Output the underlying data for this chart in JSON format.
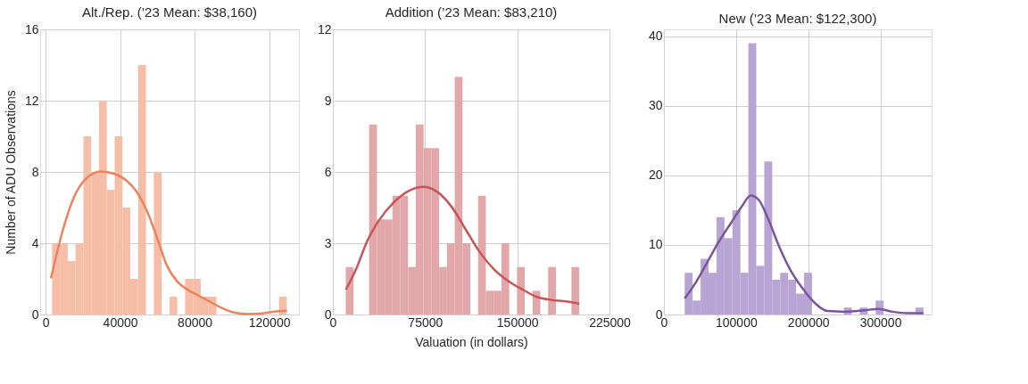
{
  "chart_data": [
    {
      "type": "histogram",
      "title": "Alt./Rep. (’23 Mean: $38,160)",
      "ylabel": "Number of ADU Observations",
      "bins": [
        3500,
        7700,
        11900,
        16100,
        20300,
        24500,
        28700,
        32900,
        37100,
        41300,
        45500,
        49700,
        53900,
        58100,
        62300,
        66500,
        70700,
        74900,
        79100,
        83300,
        87500,
        91700,
        95900,
        100100,
        104300,
        108500,
        112700,
        116900,
        121100,
        125300,
        129500
      ],
      "series": [
        {
          "color": "#f6bea6",
          "values": [
            4,
            4,
            3,
            4,
            10,
            8,
            12,
            7,
            10,
            6,
            2,
            14,
            0,
            8,
            0,
            1,
            0,
            2,
            2,
            1,
            1,
            0,
            0,
            0,
            0,
            0,
            0,
            0,
            0,
            1
          ]
        },
        {
          "type": "line",
          "color": "#ec8360",
          "x": [
            2900,
            9450,
            15270,
            21090,
            29820,
            37090,
            42900,
            48730,
            54545,
            60360,
            64730,
            70550,
            76360,
            82180,
            88000,
            93820,
            101090,
            108360,
            115630,
            122900,
            129450
          ],
          "values": [
            2.03,
            4.8,
            6.59,
            7.56,
            8.02,
            7.89,
            7.56,
            6.91,
            5.77,
            4.15,
            2.85,
            1.87,
            1.38,
            1.06,
            0.73,
            0.41,
            0.11,
            0.03,
            0.05,
            0.16,
            0.21
          ]
        }
      ],
      "xlim": [
        -2900,
        136000
      ],
      "xticks": [
        0,
        40000,
        80000,
        120000
      ],
      "ylim": [
        0,
        16
      ],
      "yticks": [
        0,
        4,
        8,
        12,
        16
      ],
      "grid": true
    },
    {
      "type": "histogram",
      "title": "Addition (’23 Mean: $83,210)",
      "xlabel": "Valuation (in dollars)",
      "bins": [
        10500,
        16830,
        23160,
        29490,
        35820,
        42150,
        48480,
        54810,
        61140,
        67470,
        73800,
        80130,
        86460,
        92790,
        99120,
        105450,
        111780,
        118110,
        124440,
        130770,
        137100,
        143430,
        149760,
        156090,
        162420,
        168750,
        175080,
        181410,
        187740,
        194070,
        200400
      ],
      "series": [
        {
          "color": "#e2a7a9",
          "values": [
            2,
            0,
            0,
            8,
            4,
            4,
            5,
            5,
            2,
            8,
            7,
            7,
            2,
            3,
            10,
            3,
            0,
            5,
            1,
            1,
            3,
            0,
            2,
            0,
            1,
            0,
            2,
            0,
            0,
            2
          ]
        },
        {
          "type": "line",
          "color": "#c65658",
          "x": [
            10550,
            18750,
            28130,
            37500,
            49220,
            60940,
            73840,
            84380,
            96100,
            107800,
            119540,
            131260,
            142980,
            154700,
            166420,
            178140,
            189860,
            200400
          ],
          "values": [
            1.04,
            1.89,
            3.11,
            3.96,
            4.7,
            5.18,
            5.37,
            5.18,
            4.57,
            3.6,
            2.62,
            1.89,
            1.4,
            1.04,
            0.73,
            0.61,
            0.55,
            0.45
          ]
        }
      ],
      "xlim": [
        0,
        225000
      ],
      "xticks": [
        0,
        75000,
        150000,
        225000
      ],
      "ylim": [
        0,
        12
      ],
      "yticks": [
        0,
        3,
        6,
        9,
        12
      ],
      "grid": true
    },
    {
      "type": "histogram",
      "title": "New (’23 Mean: $122,300)",
      "bins": [
        28760,
        39790,
        50820,
        61850,
        72880,
        83910,
        94940,
        105970,
        117000,
        128030,
        139060,
        150090,
        161120,
        172150,
        183180,
        194210,
        205240,
        216270,
        227300,
        238330,
        249360,
        260390,
        271420,
        282450,
        293480,
        304510,
        315540,
        326570,
        337600,
        348630,
        359660
      ],
      "series": [
        {
          "color": "#b9a5d3",
          "values": [
            6,
            2,
            8,
            6,
            14,
            11,
            15,
            6,
            39,
            7,
            22,
            5,
            6,
            5,
            3,
            6,
            0,
            0,
            0,
            0,
            1,
            0,
            1,
            0,
            2,
            0,
            0,
            0,
            0,
            1
          ]
        },
        {
          "type": "line",
          "color": "#7a559f",
          "x": [
            28760,
            45310,
            61070,
            76830,
            92590,
            108350,
            120170,
            131990,
            143810,
            159570,
            175330,
            191090,
            210790,
            226550,
            250190,
            277770,
            297470,
            317170,
            336870,
            359700
          ],
          "values": [
            2.3,
            4.8,
            7.7,
            10.6,
            13.1,
            15.6,
            17.1,
            16.4,
            13.9,
            9.8,
            6.4,
            3.9,
            1.5,
            0.5,
            0.4,
            0.6,
            0.8,
            0.4,
            0.2,
            0.2
          ]
        }
      ],
      "xlim": [
        0,
        371000
      ],
      "xticks": [
        0,
        100000,
        200000,
        300000
      ],
      "ylim": [
        0,
        41
      ],
      "yticks": [
        0,
        10,
        20,
        30,
        40
      ],
      "grid": true
    }
  ]
}
